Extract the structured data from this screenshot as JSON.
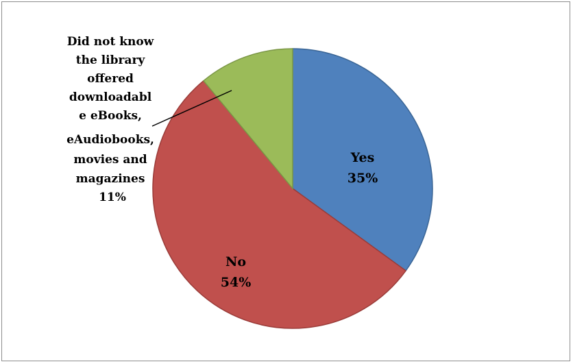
{
  "chart_data": {
    "type": "pie",
    "title": "",
    "legend": "none",
    "slices": [
      {
        "name": "Yes",
        "value": 35,
        "label": "Yes",
        "percent_label": "35%",
        "color": "#4f81bd"
      },
      {
        "name": "No",
        "value": 54,
        "label": "No",
        "percent_label": "54%",
        "color": "#c0504d"
      },
      {
        "name": "Did not know the library offered downloadable eBooks, eAudiobooks, movies and magazines",
        "value": 11,
        "label_lines": [
          "Did not know",
          "the library",
          "offered",
          "downloadabl",
          "e eBooks,",
          "eAudiobooks,",
          "movies and",
          "magazines"
        ],
        "percent_label": "11%",
        "color": "#9bbb59"
      }
    ]
  }
}
